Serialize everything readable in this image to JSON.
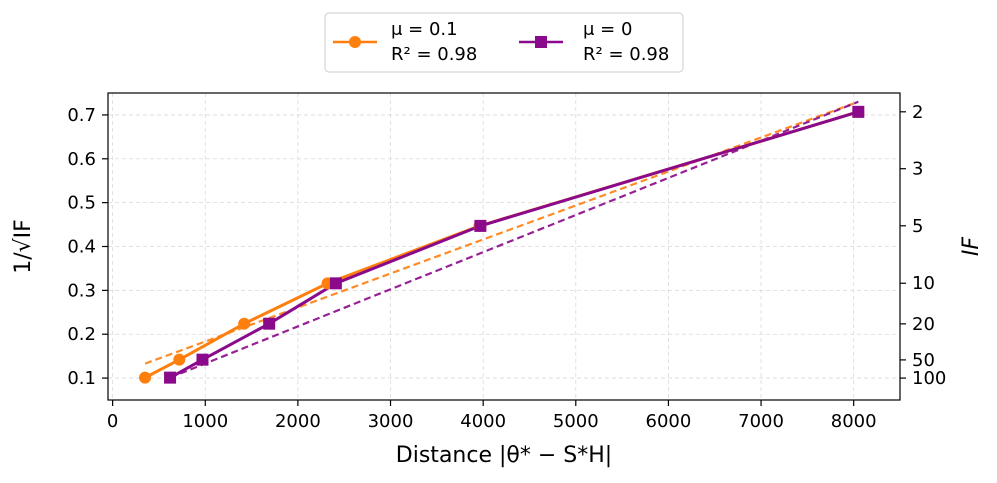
{
  "chart_data": {
    "type": "line",
    "xlabel": "Distance |θ* − S*H|",
    "ylabel_left": "1/√IF",
    "ylabel_right": "IF",
    "xlim": [
      -50,
      8500
    ],
    "ylim": [
      0.05,
      0.75
    ],
    "xticks": [
      0,
      1000,
      2000,
      3000,
      4000,
      5000,
      6000,
      7000,
      8000
    ],
    "yticks": [
      0.1,
      0.2,
      0.3,
      0.4,
      0.5,
      0.6,
      0.7
    ],
    "right_ticks": [
      2,
      3,
      5,
      10,
      20,
      50,
      100
    ],
    "grid": true,
    "legend_position": "top-center-outside",
    "series": [
      {
        "name": "μ = 0.1",
        "r2_label": "R² = 0.98",
        "mu_text": "μ = 0.1",
        "r2_text": "R² = 0.98",
        "color": "#ff7f0e",
        "marker": "circle",
        "x": [
          350,
          720,
          1420,
          2320,
          3960,
          8050
        ],
        "y": [
          0.101,
          0.142,
          0.224,
          0.316,
          0.447,
          0.707
        ],
        "fit": {
          "x": [
            350,
            8050
          ],
          "y": [
            0.133,
            0.73
          ]
        }
      },
      {
        "name": "μ = 0",
        "r2_label": "R² = 0.98",
        "mu_text": "μ = 0",
        "r2_text": "R² = 0.98",
        "color": "#8b0a8b",
        "marker": "square",
        "x": [
          620,
          970,
          1690,
          2410,
          3970,
          8050
        ],
        "y": [
          0.101,
          0.142,
          0.224,
          0.316,
          0.447,
          0.707
        ],
        "fit": {
          "x": [
            620,
            8050
          ],
          "y": [
            0.101,
            0.73
          ]
        }
      }
    ]
  }
}
